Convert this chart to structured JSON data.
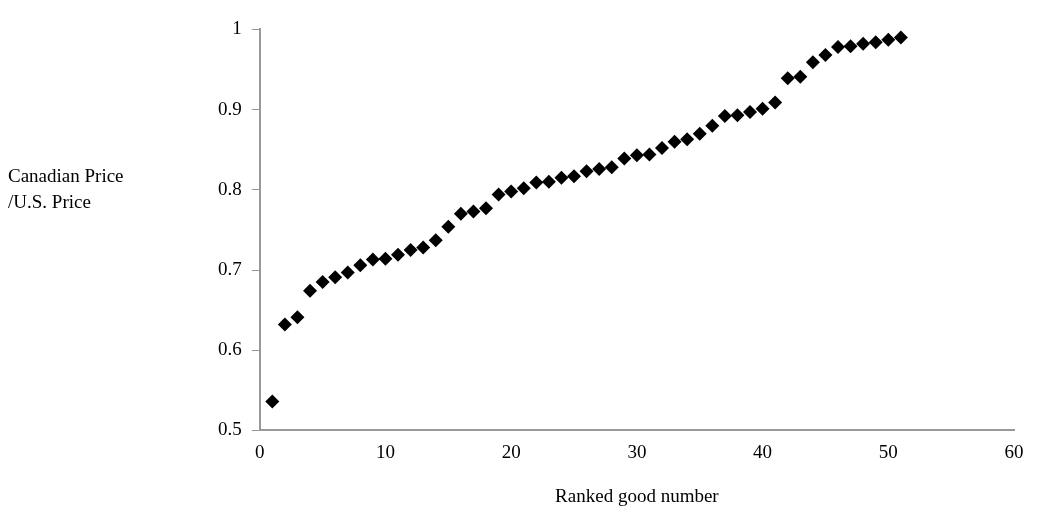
{
  "chart_data": {
    "type": "scatter",
    "xlabel": "Ranked good number",
    "ylabel": "Canadian Price /U.S. Price",
    "x": [
      1,
      2,
      3,
      4,
      5,
      6,
      7,
      8,
      9,
      10,
      11,
      12,
      13,
      14,
      15,
      16,
      17,
      18,
      19,
      20,
      21,
      22,
      23,
      24,
      25,
      26,
      27,
      28,
      29,
      30,
      31,
      32,
      33,
      34,
      35,
      36,
      37,
      38,
      39,
      40,
      41,
      42,
      43,
      44,
      45,
      46,
      47,
      48,
      49,
      50,
      51
    ],
    "series": [
      {
        "color": "#000000",
        "values": [
          0.536,
          0.632,
          0.641,
          0.674,
          0.685,
          0.691,
          0.697,
          0.706,
          0.713,
          0.714,
          0.719,
          0.725,
          0.728,
          0.737,
          0.754,
          0.77,
          0.773,
          0.777,
          0.794,
          0.798,
          0.802,
          0.809,
          0.81,
          0.815,
          0.817,
          0.823,
          0.826,
          0.828,
          0.839,
          0.843,
          0.844,
          0.852,
          0.86,
          0.863,
          0.87,
          0.88,
          0.892,
          0.893,
          0.897,
          0.901,
          0.909,
          0.939,
          0.941,
          0.959,
          0.968,
          0.978,
          0.979,
          0.982,
          0.984,
          0.987,
          0.99
        ]
      }
    ],
    "xlim": [
      0,
      60
    ],
    "xticks": [
      0,
      10,
      20,
      30,
      40,
      50,
      60
    ],
    "ylim": [
      0.5,
      1
    ],
    "yticks": [
      0.5,
      0.6,
      0.7,
      0.8,
      0.9,
      1
    ],
    "marker": "diamond",
    "grid": false,
    "legend": false
  }
}
